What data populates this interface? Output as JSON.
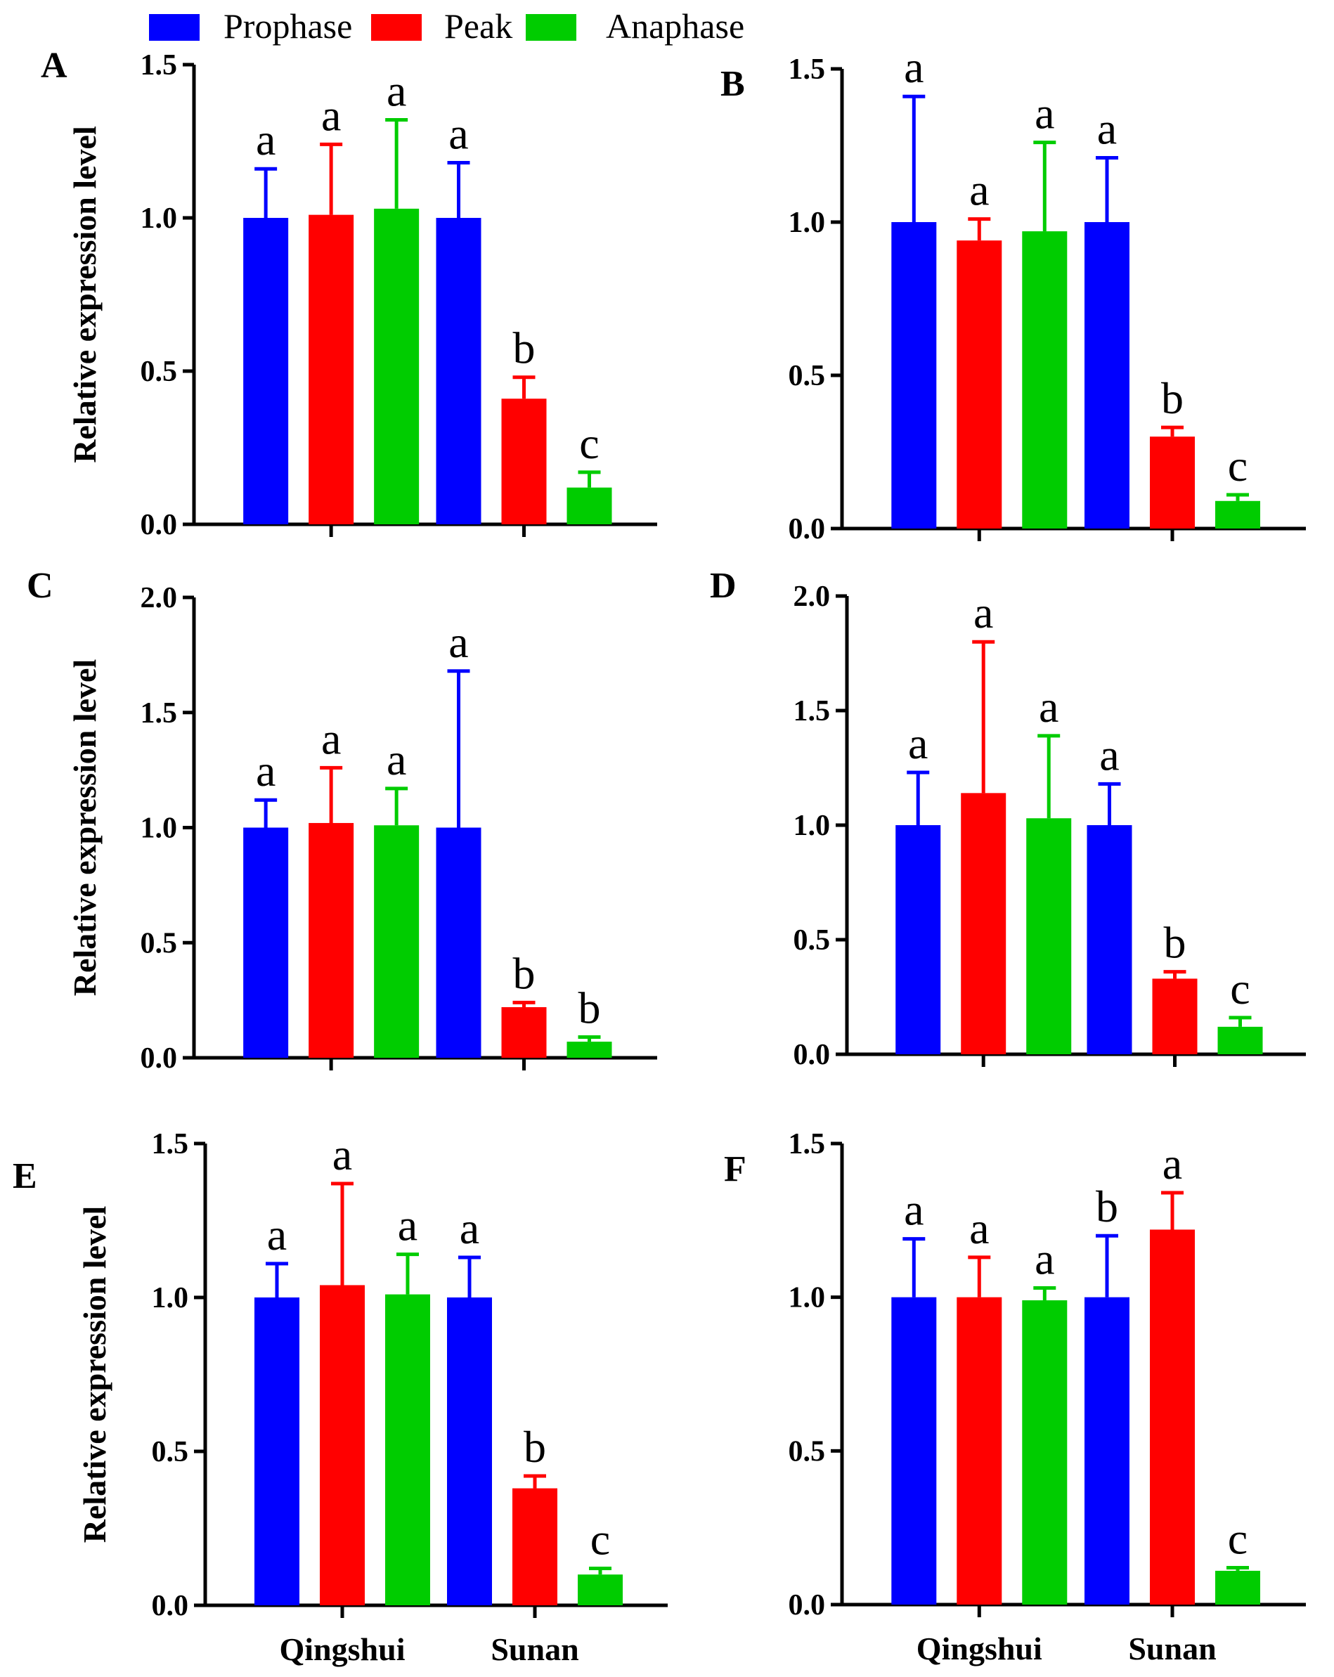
{
  "chart_data": [
    {
      "panel": "A",
      "type": "bar",
      "ylabel": "Relative expression level",
      "ylim": [
        0,
        1.5
      ],
      "yticks": [
        "0.0",
        "0.5",
        "1.0",
        "1.5"
      ],
      "categories": [
        "Qingshui",
        "Sunan"
      ],
      "show_category_labels": false,
      "series": [
        {
          "name": "Prophase",
          "values": [
            1.0,
            1.0
          ],
          "errors": [
            0.16,
            0.18
          ],
          "labels": [
            "a",
            "a"
          ]
        },
        {
          "name": "Peak",
          "values": [
            1.01,
            0.41
          ],
          "errors": [
            0.23,
            0.07
          ],
          "labels": [
            "a",
            "b"
          ]
        },
        {
          "name": "Anaphase",
          "values": [
            1.03,
            0.12
          ],
          "errors": [
            0.29,
            0.05
          ],
          "labels": [
            "a",
            "c"
          ]
        }
      ]
    },
    {
      "panel": "B",
      "type": "bar",
      "ylabel": "",
      "ylim": [
        0,
        1.5
      ],
      "yticks": [
        "0.0",
        "0.5",
        "1.0",
        "1.5"
      ],
      "categories": [
        "Qingshui",
        "Sunan"
      ],
      "show_category_labels": false,
      "series": [
        {
          "name": "Prophase",
          "values": [
            1.0,
            1.0
          ],
          "errors": [
            0.41,
            0.21
          ],
          "labels": [
            "a",
            "a"
          ]
        },
        {
          "name": "Peak",
          "values": [
            0.94,
            0.3
          ],
          "errors": [
            0.07,
            0.03
          ],
          "labels": [
            "a",
            "b"
          ]
        },
        {
          "name": "Anaphase",
          "values": [
            0.97,
            0.09
          ],
          "errors": [
            0.29,
            0.02
          ],
          "labels": [
            "a",
            "c"
          ]
        }
      ]
    },
    {
      "panel": "C",
      "type": "bar",
      "ylabel": "Relative expression level",
      "ylim": [
        0,
        2.0
      ],
      "yticks": [
        "0.0",
        "0.5",
        "1.0",
        "1.5",
        "2.0"
      ],
      "categories": [
        "Qingshui",
        "Sunan"
      ],
      "show_category_labels": false,
      "series": [
        {
          "name": "Prophase",
          "values": [
            1.0,
            1.0
          ],
          "errors": [
            0.12,
            0.68
          ],
          "labels": [
            "a",
            "a"
          ]
        },
        {
          "name": "Peak",
          "values": [
            1.02,
            0.22
          ],
          "errors": [
            0.24,
            0.02
          ],
          "labels": [
            "a",
            "b"
          ]
        },
        {
          "name": "Anaphase",
          "values": [
            1.01,
            0.07
          ],
          "errors": [
            0.16,
            0.02
          ],
          "labels": [
            "a",
            "b"
          ]
        }
      ]
    },
    {
      "panel": "D",
      "type": "bar",
      "ylabel": "",
      "ylim": [
        0,
        2.0
      ],
      "yticks": [
        "0.0",
        "0.5",
        "1.0",
        "1.5",
        "2.0"
      ],
      "categories": [
        "Qingshui",
        "Sunan"
      ],
      "show_category_labels": false,
      "series": [
        {
          "name": "Prophase",
          "values": [
            1.0,
            1.0
          ],
          "errors": [
            0.23,
            0.18
          ],
          "labels": [
            "a",
            "a"
          ]
        },
        {
          "name": "Peak",
          "values": [
            1.14,
            0.33
          ],
          "errors": [
            0.66,
            0.03
          ],
          "labels": [
            "a",
            "b"
          ]
        },
        {
          "name": "Anaphase",
          "values": [
            1.03,
            0.12
          ],
          "errors": [
            0.36,
            0.04
          ],
          "labels": [
            "a",
            "c"
          ]
        }
      ]
    },
    {
      "panel": "E",
      "type": "bar",
      "ylabel": "Relative expression level",
      "ylim": [
        0,
        1.5
      ],
      "yticks": [
        "0.0",
        "0.5",
        "1.0",
        "1.5"
      ],
      "categories": [
        "Qingshui",
        "Sunan"
      ],
      "show_category_labels": true,
      "series": [
        {
          "name": "Prophase",
          "values": [
            1.0,
            1.0
          ],
          "errors": [
            0.11,
            0.13
          ],
          "labels": [
            "a",
            "a"
          ]
        },
        {
          "name": "Peak",
          "values": [
            1.04,
            0.38
          ],
          "errors": [
            0.33,
            0.04
          ],
          "labels": [
            "a",
            "b"
          ]
        },
        {
          "name": "Anaphase",
          "values": [
            1.01,
            0.1
          ],
          "errors": [
            0.13,
            0.02
          ],
          "labels": [
            "a",
            "c"
          ]
        }
      ]
    },
    {
      "panel": "F",
      "type": "bar",
      "ylabel": "",
      "ylim": [
        0,
        1.5
      ],
      "yticks": [
        "0.0",
        "0.5",
        "1.0",
        "1.5"
      ],
      "categories": [
        "Qingshui",
        "Sunan"
      ],
      "show_category_labels": true,
      "series": [
        {
          "name": "Prophase",
          "values": [
            1.0,
            1.0
          ],
          "errors": [
            0.19,
            0.2
          ],
          "labels": [
            "a",
            "b"
          ]
        },
        {
          "name": "Peak",
          "values": [
            1.0,
            1.22
          ],
          "errors": [
            0.13,
            0.12
          ],
          "labels": [
            "a",
            "a"
          ]
        },
        {
          "name": "Anaphase",
          "values": [
            0.99,
            0.11
          ],
          "errors": [
            0.04,
            0.01
          ],
          "labels": [
            "a",
            "c"
          ]
        }
      ]
    }
  ],
  "legend": {
    "items": [
      {
        "label": "Prophase",
        "color": "#0000ff"
      },
      {
        "label": "Peak",
        "color": "#ff0000"
      },
      {
        "label": "Anaphase",
        "color": "#00cc00"
      }
    ]
  }
}
